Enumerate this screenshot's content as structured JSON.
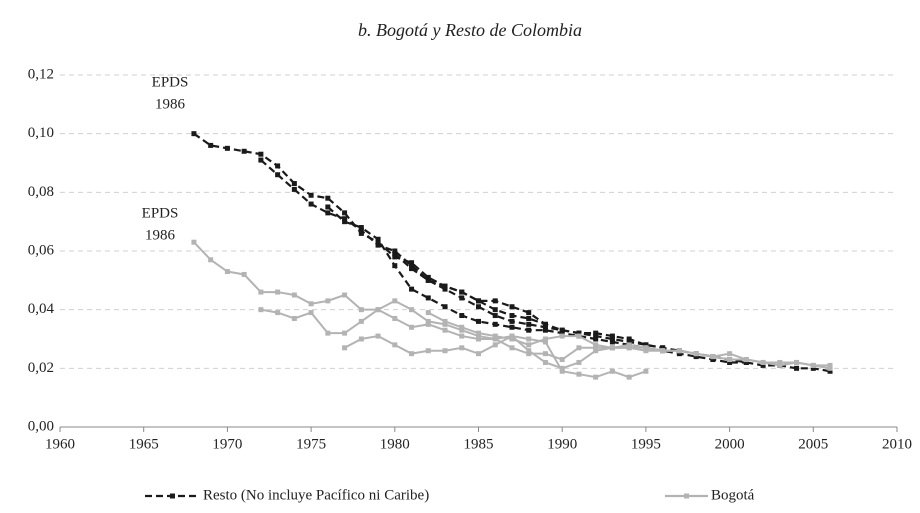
{
  "chart_data": {
    "type": "line",
    "title": "b. Bogotá y Resto de Colombia",
    "xlim": [
      1960,
      2010
    ],
    "xticks": [
      1960,
      1965,
      1970,
      1975,
      1980,
      1985,
      1990,
      1995,
      2000,
      2005,
      2010
    ],
    "ylim": [
      0,
      0.12
    ],
    "yticks": [
      {
        "value": 0,
        "label": "0,00"
      },
      {
        "value": 0.02,
        "label": "0,02"
      },
      {
        "value": 0.04,
        "label": "0,04"
      },
      {
        "value": 0.06,
        "label": "0,06"
      },
      {
        "value": 0.08,
        "label": "0,08"
      },
      {
        "value": 0.1,
        "label": "0,10"
      },
      {
        "value": 0.12,
        "label": "0,12"
      }
    ],
    "grid": true,
    "series": [
      {
        "name": "Resto (No incluye Pacífico ni Caribe)",
        "color": "#1a1a1a",
        "dashed": true,
        "lines": [
          {
            "x": [
              1968,
              1969,
              1970,
              1971,
              1972,
              1973,
              1974,
              1975,
              1976,
              1977,
              1978,
              1979,
              1980,
              1981,
              1982,
              1983,
              1984,
              1985,
              1986,
              1987,
              1988,
              1989
            ],
            "values": [
              0.1,
              0.096,
              0.095,
              0.094,
              0.093,
              0.089,
              0.083,
              0.079,
              0.078,
              0.073,
              0.066,
              0.063,
              0.058,
              0.056,
              0.051,
              0.048,
              0.046,
              0.043,
              0.043,
              0.041,
              0.039,
              0.035
            ]
          },
          {
            "x": [
              1972,
              1973,
              1974,
              1975,
              1976,
              1977,
              1978,
              1979,
              1980,
              1981,
              1982,
              1983,
              1984,
              1985,
              1986,
              1987,
              1988,
              1989,
              1990,
              1991,
              1992,
              1993,
              1994,
              1995,
              1996
            ],
            "values": [
              0.091,
              0.086,
              0.081,
              0.076,
              0.073,
              0.071,
              0.067,
              0.062,
              0.06,
              0.055,
              0.05,
              0.048,
              0.046,
              0.043,
              0.04,
              0.038,
              0.037,
              0.035,
              0.033,
              0.032,
              0.032,
              0.031,
              0.03,
              0.028,
              0.027
            ]
          },
          {
            "x": [
              1976,
              1977,
              1978,
              1979,
              1980,
              1981,
              1982,
              1983,
              1984,
              1985,
              1986,
              1987,
              1988,
              1989,
              1990,
              1991,
              1992,
              1993,
              1994,
              1995,
              1996,
              1997,
              1998,
              1999,
              2000,
              2001
            ],
            "values": [
              0.075,
              0.07,
              0.068,
              0.064,
              0.055,
              0.047,
              0.044,
              0.041,
              0.038,
              0.036,
              0.035,
              0.034,
              0.033,
              0.033,
              0.032,
              0.031,
              0.03,
              0.029,
              0.028,
              0.027,
              0.026,
              0.025,
              0.024,
              0.023,
              0.022,
              0.022
            ]
          },
          {
            "x": [
              1980,
              1981,
              1982,
              1983,
              1984,
              1985,
              1986,
              1987,
              1988,
              1989,
              1990,
              1991,
              1992,
              1993,
              1994,
              1995,
              1996,
              1997,
              1998,
              1999,
              2000,
              2001,
              2002,
              2003,
              2004,
              2005,
              2006
            ],
            "values": [
              0.059,
              0.054,
              0.05,
              0.047,
              0.044,
              0.041,
              0.038,
              0.036,
              0.035,
              0.034,
              0.033,
              0.032,
              0.031,
              0.03,
              0.029,
              0.028,
              0.027,
              0.026,
              0.025,
              0.024,
              0.023,
              0.022,
              0.021,
              0.021,
              0.02,
              0.02,
              0.019
            ]
          }
        ]
      },
      {
        "name": "Bogotá",
        "color": "#b3b3b3",
        "dashed": false,
        "lines": [
          {
            "x": [
              1968,
              1969,
              1970,
              1971,
              1972,
              1973,
              1974,
              1975,
              1976,
              1977,
              1978,
              1979,
              1980,
              1981,
              1982,
              1983,
              1984,
              1985,
              1986,
              1987,
              1988,
              1989,
              1990,
              1991,
              1992,
              1993,
              1994,
              1995,
              1996
            ],
            "values": [
              0.063,
              0.057,
              0.053,
              0.052,
              0.046,
              0.046,
              0.045,
              0.042,
              0.043,
              0.045,
              0.04,
              0.04,
              0.037,
              0.034,
              0.035,
              0.033,
              0.031,
              0.03,
              0.03,
              0.027,
              0.025,
              0.025,
              0.023,
              0.027,
              0.027,
              0.027,
              0.027,
              0.027,
              0.026
            ]
          },
          {
            "x": [
              1972,
              1973,
              1974,
              1975,
              1976,
              1977,
              1978,
              1979,
              1980,
              1981,
              1982,
              1983,
              1984,
              1985,
              1986,
              1987,
              1988,
              1989,
              1990,
              1991,
              1992,
              1993,
              1994,
              1995
            ],
            "values": [
              0.04,
              0.039,
              0.037,
              0.039,
              0.032,
              0.032,
              0.036,
              0.04,
              0.043,
              0.04,
              0.036,
              0.035,
              0.033,
              0.031,
              0.03,
              0.031,
              0.03,
              0.029,
              0.019,
              0.018,
              0.017,
              0.019,
              0.017,
              0.019
            ]
          },
          {
            "x": [
              1977,
              1978,
              1979,
              1980,
              1981,
              1982,
              1983,
              1984,
              1985,
              1986,
              1987,
              1988,
              1989,
              1990,
              1991,
              1992,
              1993,
              1994,
              1995,
              1996,
              1997,
              1998,
              1999,
              2000,
              2001,
              2002,
              2003,
              2004,
              2005,
              2006
            ],
            "values": [
              0.027,
              0.03,
              0.031,
              0.028,
              0.025,
              0.026,
              0.026,
              0.027,
              0.025,
              0.028,
              0.031,
              0.026,
              0.022,
              0.02,
              0.022,
              0.026,
              0.027,
              0.028,
              0.027,
              0.026,
              0.026,
              0.025,
              0.024,
              0.025,
              0.023,
              0.022,
              0.022,
              0.022,
              0.021,
              0.021
            ]
          },
          {
            "x": [
              1982,
              1983,
              1984,
              1985,
              1986,
              1987,
              1988,
              1989,
              1990,
              1991,
              1992,
              1993,
              1994,
              1995,
              1996,
              1997,
              1998,
              1999,
              2000,
              2001,
              2002,
              2003,
              2004,
              2005,
              2006
            ],
            "values": [
              0.039,
              0.036,
              0.034,
              0.032,
              0.031,
              0.03,
              0.028,
              0.03,
              0.031,
              0.031,
              0.028,
              0.027,
              0.027,
              0.026,
              0.026,
              0.026,
              0.025,
              0.024,
              0.023,
              0.023,
              0.022,
              0.021,
              0.022,
              0.021,
              0.02
            ]
          }
        ]
      }
    ],
    "annotations": [
      {
        "lines": [
          "EPDS",
          "1986"
        ]
      },
      {
        "lines": [
          "EPDS",
          "1986"
        ]
      }
    ]
  }
}
